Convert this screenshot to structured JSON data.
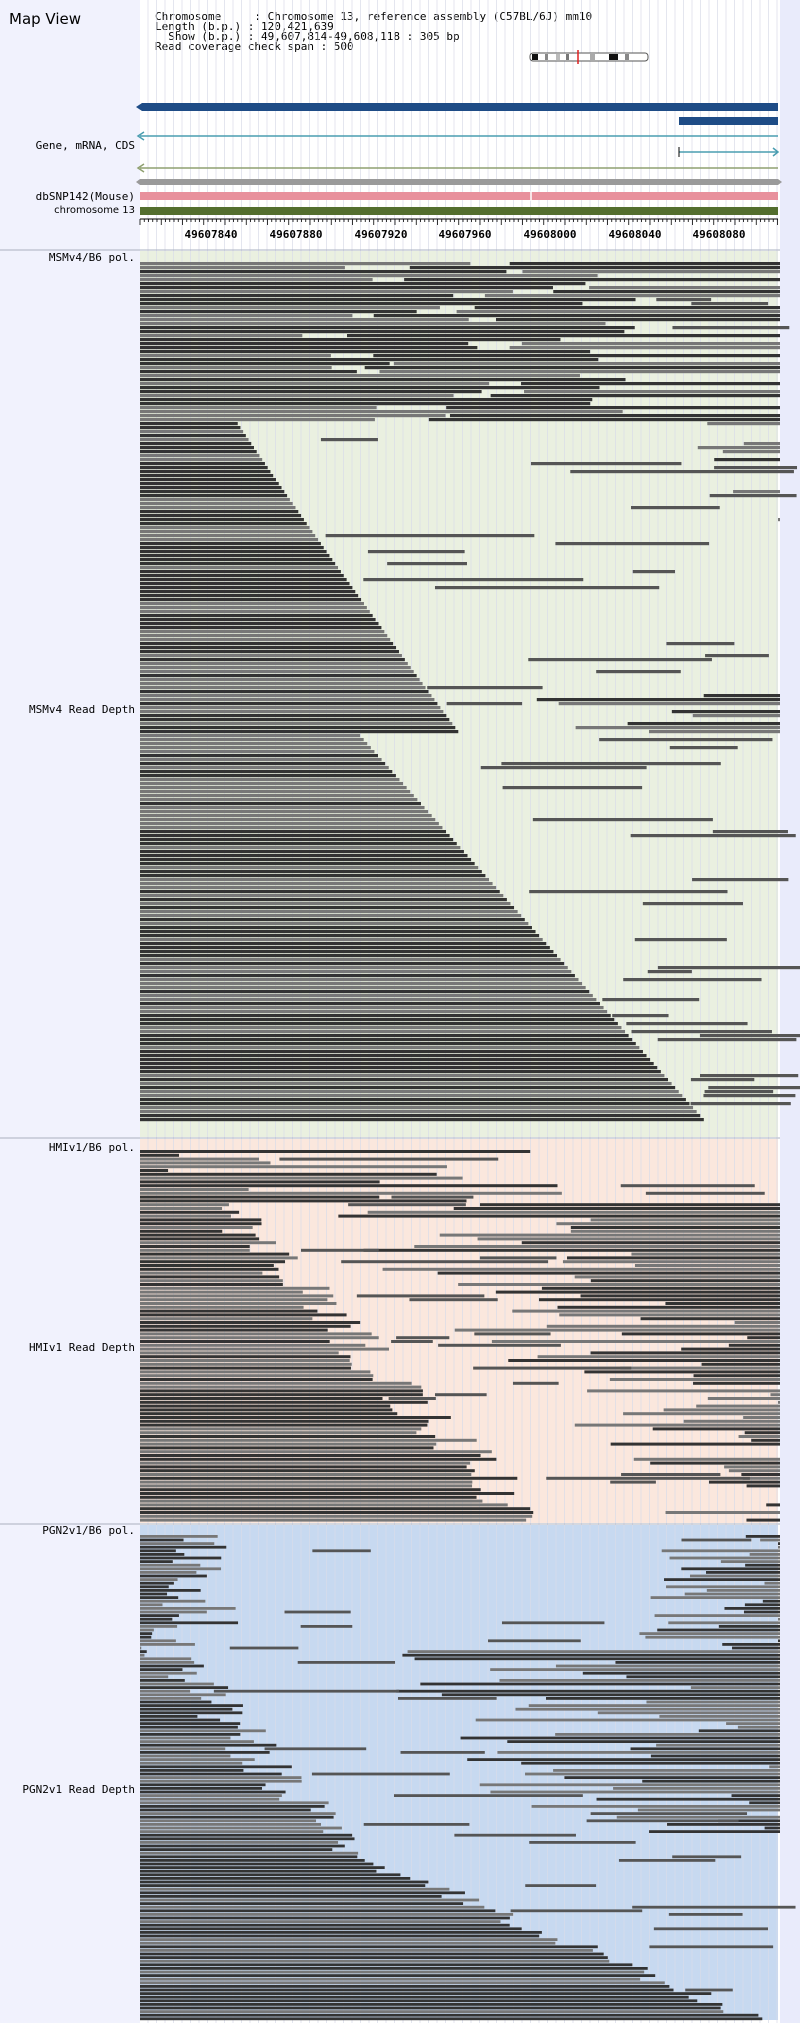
{
  "header": {
    "title": "Map View",
    "info_lines": [
      "Chromosome     : Chromosome 13, reference assembly (C57BL/6J) mm10",
      "Length (b.p.) : 120,421,639",
      "  Show (b.p.) : 49,607,814-49,608,118 : 305 bp",
      "Read coverage check span : 500"
    ]
  },
  "tracks": {
    "gene": "Gene, mRNA, CDS",
    "dbsnp": "dbSNP142(Mouse)",
    "chromosome": "chromosome 13",
    "msm_pol": "MSMv4/B6 pol.",
    "msm_depth": "MSMv4 Read Depth",
    "hmi_pol": "HMIv1/B6 pol.",
    "hmi_depth": "HMIv1 Read Depth",
    "pgn_pol": "PGN2v1/B6 pol.",
    "pgn_depth": "PGN2v1 Read Depth"
  },
  "ruler": {
    "ticks": [
      "49607840",
      "49607880",
      "49607920",
      "49607960",
      "49608000",
      "49608040",
      "49608080"
    ]
  },
  "colors": {
    "msm_bg": "#eaf0e0",
    "hmi_bg": "#fbe7dd",
    "pgn_bg": "#c7d9f0",
    "gene_blue": "#1e4c86",
    "teal_arrow": "#4a9db0",
    "snp_pink": "#e8909c",
    "chr_green": "#536e2e",
    "read_dark": "#333333",
    "read_mid": "#777777"
  }
}
